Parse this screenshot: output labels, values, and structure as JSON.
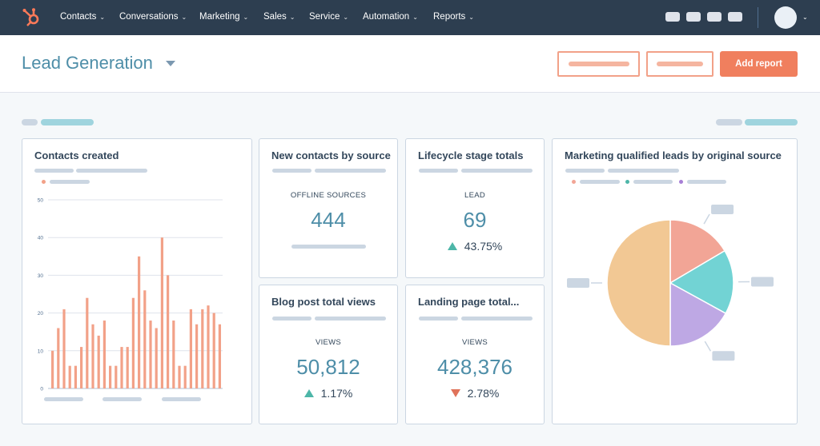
{
  "nav": {
    "items": [
      {
        "label": "Contacts"
      },
      {
        "label": "Conversations"
      },
      {
        "label": "Marketing"
      },
      {
        "label": "Sales"
      },
      {
        "label": "Service"
      },
      {
        "label": "Automation"
      },
      {
        "label": "Reports"
      }
    ]
  },
  "header": {
    "title": "Lead Generation",
    "add_report_label": "Add report"
  },
  "cards": {
    "contacts_created": {
      "title": "Contacts created"
    },
    "new_contacts_by_source": {
      "title": "New contacts by source",
      "label": "OFFLINE SOURCES",
      "value": "444"
    },
    "lifecycle_stage_totals": {
      "title": "Lifecycle stage totals",
      "label": "LEAD",
      "value": "69",
      "change": "43.75%",
      "direction": "up"
    },
    "blog_post_total_views": {
      "title": "Blog post total views",
      "label": "VIEWS",
      "value": "50,812",
      "change": "1.17%",
      "direction": "up"
    },
    "landing_page_total": {
      "title": "Landing page total...",
      "label": "VIEWS",
      "value": "428,376",
      "change": "2.78%",
      "direction": "down"
    },
    "mql_by_source": {
      "title": "Marketing qualified leads by original source"
    }
  },
  "colors": {
    "accent": "#4e8ea8",
    "cta": "#f07f5e",
    "bar": "#f2a188",
    "up": "#4db6a8",
    "down": "#e0735a",
    "nav_bg": "#2d3e50"
  },
  "chart_data": [
    {
      "type": "bar",
      "ylim": [
        0,
        50
      ],
      "yticks": [
        "0",
        "10",
        "20",
        "30",
        "40",
        "50"
      ],
      "grid": true,
      "values": [
        10,
        16,
        21,
        6,
        6,
        11,
        24,
        17,
        14,
        18,
        6,
        6,
        11,
        11,
        24,
        35,
        26,
        18,
        16,
        40,
        30,
        18,
        6,
        6,
        21,
        17,
        21,
        22,
        20,
        17
      ]
    },
    {
      "type": "pie",
      "values": [
        16.5,
        16.5,
        17,
        50
      ],
      "colors": [
        "#f2a596",
        "#72d3d4",
        "#bea8e4",
        "#f2c894"
      ]
    }
  ]
}
